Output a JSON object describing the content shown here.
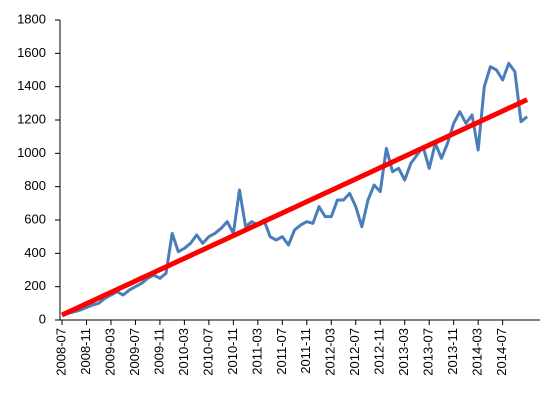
{
  "chart_data": {
    "type": "line",
    "categories": [
      "2008-07",
      null,
      null,
      null,
      "2008-11",
      null,
      null,
      null,
      "2009-03",
      null,
      null,
      null,
      "2009-07",
      null,
      null,
      null,
      "2009-11",
      null,
      null,
      null,
      "2010-03",
      null,
      null,
      null,
      "2010-07",
      null,
      null,
      null,
      "2010-11",
      null,
      null,
      null,
      "2011-03",
      null,
      null,
      null,
      "2011-07",
      null,
      null,
      null,
      "2011-11",
      null,
      null,
      null,
      "2012-03",
      null,
      null,
      null,
      "2012-07",
      null,
      null,
      null,
      "2012-11",
      null,
      null,
      null,
      "2013-03",
      null,
      null,
      null,
      "2013-07",
      null,
      null,
      null,
      "2013-11",
      null,
      null,
      null,
      "2014-03",
      null,
      null,
      null,
      "2014-07",
      null,
      null,
      null,
      null
    ],
    "series": [
      {
        "color": "#4a7ebb",
        "values": [
          30,
          40,
          50,
          60,
          75,
          90,
          100,
          130,
          150,
          170,
          150,
          180,
          200,
          220,
          250,
          270,
          250,
          280,
          520,
          410,
          430,
          460,
          510,
          460,
          500,
          520,
          550,
          590,
          520,
          780,
          560,
          590,
          570,
          600,
          500,
          480,
          500,
          450,
          540,
          570,
          590,
          580,
          680,
          620,
          620,
          720,
          720,
          760,
          680,
          560,
          720,
          810,
          770,
          1030,
          890,
          910,
          840,
          940,
          990,
          1040,
          910,
          1060,
          970,
          1060,
          1180,
          1250,
          1180,
          1230,
          1020,
          1400,
          1520,
          1500,
          1440,
          1540,
          1490,
          1190,
          1220
        ]
      },
      {
        "color": "#ff0000",
        "values": [
          30,
          47,
          64,
          81,
          98,
          115,
          132,
          149,
          166,
          183,
          200,
          217,
          234,
          251,
          268,
          285,
          302,
          319,
          336,
          353,
          370,
          387,
          404,
          421,
          438,
          455,
          472,
          489,
          506,
          523,
          540,
          557,
          574,
          591,
          608,
          625,
          642,
          659,
          676,
          693,
          710,
          727,
          744,
          761,
          778,
          795,
          812,
          829,
          846,
          863,
          880,
          897,
          914,
          931,
          948,
          965,
          982,
          999,
          1016,
          1033,
          1050,
          1067,
          1084,
          1101,
          1118,
          1135,
          1152,
          1169,
          1186,
          1203,
          1220,
          1237,
          1254,
          1271,
          1288,
          1305,
          1322
        ]
      }
    ],
    "ylim": [
      0,
      1800
    ],
    "yticks": [
      0,
      200,
      400,
      600,
      800,
      1000,
      1200,
      1400,
      1600,
      1800
    ],
    "grid": false
  }
}
